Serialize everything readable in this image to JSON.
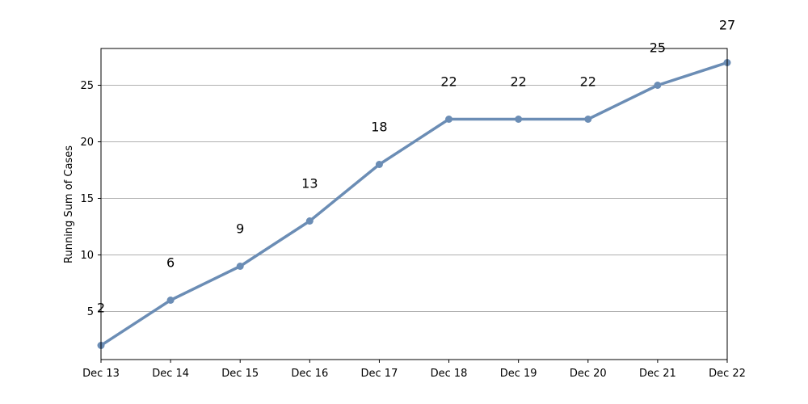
{
  "chart_data": {
    "type": "line",
    "title": "",
    "xlabel": "",
    "ylabel": "Running Sum of Cases",
    "categories": [
      "Dec 13",
      "Dec 14",
      "Dec 15",
      "Dec 16",
      "Dec 17",
      "Dec 18",
      "Dec 19",
      "Dec 20",
      "Dec 21",
      "Dec 22"
    ],
    "series": [
      {
        "values": [
          2,
          6,
          9,
          13,
          18,
          22,
          22,
          22,
          25,
          27
        ]
      }
    ],
    "yticks": [
      5,
      10,
      15,
      20,
      25
    ],
    "ylim": [
      0.75,
      28.25
    ],
    "grid": "y",
    "legend": "none",
    "data_labels": true,
    "colors": {
      "line": "#6b8db5",
      "grid": "#b0b0b0",
      "axis": "#000000"
    }
  }
}
